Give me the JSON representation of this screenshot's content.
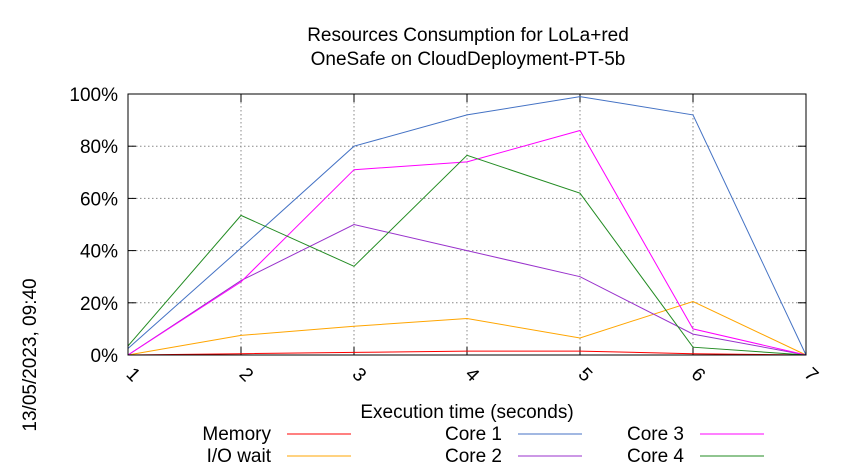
{
  "chart_data": {
    "type": "line",
    "title_line1": "Resources Consumption for LoLa+red",
    "title_line2": "OneSafe on CloudDeployment-PT-5b",
    "xlabel": "Execution time (seconds)",
    "ylabel": "",
    "side_label": "13/05/2023, 09:40",
    "x": [
      1,
      2,
      3,
      4,
      5,
      6,
      7
    ],
    "xlim": [
      1,
      7
    ],
    "ylim": [
      0,
      100
    ],
    "yticks": [
      0,
      20,
      40,
      60,
      80,
      100
    ],
    "ytick_labels": [
      "0%",
      "20%",
      "40%",
      "60%",
      "80%",
      "100%"
    ],
    "xtick_labels": [
      "1",
      "2",
      "3",
      "4",
      "5",
      "6",
      "7"
    ],
    "grid": true,
    "legend_position": "bottom",
    "series": [
      {
        "name": "Memory",
        "color": "#ff0000",
        "values": [
          0,
          0.5,
          1,
          1.5,
          1.5,
          0.5,
          0
        ]
      },
      {
        "name": "I/O wait",
        "color": "#ffa500",
        "values": [
          0,
          7.5,
          11,
          14,
          6.5,
          20.5,
          0
        ]
      },
      {
        "name": "Core 1",
        "color": "#4472c4",
        "values": [
          2.5,
          41,
          80,
          92,
          99,
          92,
          0
        ]
      },
      {
        "name": "Core 2",
        "color": "#9932cc",
        "values": [
          0,
          28.5,
          50,
          40,
          30,
          8,
          0
        ]
      },
      {
        "name": "Core 3",
        "color": "#ff00ff",
        "values": [
          0,
          28,
          71,
          74,
          86,
          10,
          0
        ]
      },
      {
        "name": "Core 4",
        "color": "#228b22",
        "values": [
          3.5,
          53.5,
          34,
          76.5,
          62,
          3,
          0
        ]
      }
    ]
  }
}
